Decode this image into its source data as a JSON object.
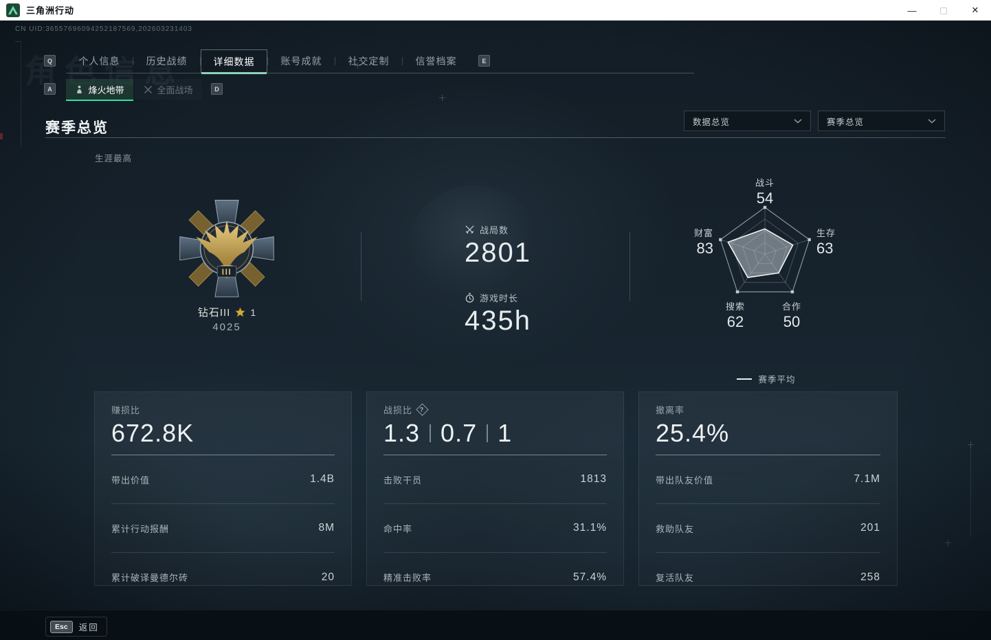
{
  "window": {
    "title": "三角洲行动",
    "minimize": "—",
    "maximize": "▢",
    "close": "✕"
  },
  "hud": {
    "uid": "CN UID:36557696094252187569,202603231403",
    "watermark": "角色信息"
  },
  "tabs": {
    "prev_key": "Q",
    "next_key": "E",
    "items": [
      {
        "label": "个人信息"
      },
      {
        "label": "历史战绩"
      },
      {
        "label": "详细数据"
      },
      {
        "label": "账号成就"
      },
      {
        "label": "社交定制"
      },
      {
        "label": "信誉档案"
      }
    ]
  },
  "subtabs": {
    "prev_key": "A",
    "next_key": "D",
    "items": [
      {
        "label": "烽火地带"
      },
      {
        "label": "全面战场"
      }
    ]
  },
  "section": {
    "title": "赛季总览",
    "filter_data": "数据总览",
    "filter_season": "赛季总览"
  },
  "career": {
    "label": "生涯最高",
    "rank_name": "钻石III",
    "star_count": "1",
    "score": "4025",
    "medal_tier": "III"
  },
  "summary": {
    "battles_label": "战局数",
    "battles_value": "2801",
    "playtime_label": "游戏时长",
    "playtime_value": "435h"
  },
  "chart_data": {
    "type": "radar",
    "axes": [
      {
        "label": "战斗",
        "value": 54
      },
      {
        "label": "生存",
        "value": 63
      },
      {
        "label": "合作",
        "value": 50
      },
      {
        "label": "搜索",
        "value": 62
      },
      {
        "label": "财富",
        "value": 83
      }
    ],
    "series": [
      {
        "name": "赛季平均",
        "values": [
          54,
          63,
          50,
          62,
          83
        ]
      }
    ],
    "max": 100,
    "grid_levels": 4,
    "legend": "赛季平均",
    "legend_position": "bottom"
  },
  "cards": [
    {
      "title": "赚损比",
      "big": "672.8K",
      "rows": [
        {
          "label": "带出价值",
          "value": "1.4B"
        },
        {
          "label": "累计行动报酬",
          "value": "8M"
        },
        {
          "label": "累计破译曼德尔砖",
          "value": "20"
        }
      ]
    },
    {
      "title": "战损比",
      "help": "?",
      "big_parts": [
        "1.3",
        "0.7",
        "1"
      ],
      "rows": [
        {
          "label": "击败干员",
          "value": "1813"
        },
        {
          "label": "命中率",
          "value": "31.1%"
        },
        {
          "label": "精准击败率",
          "value": "57.4%"
        }
      ]
    },
    {
      "title": "撤离率",
      "big": "25.4%",
      "rows": [
        {
          "label": "带出队友价值",
          "value": "7.1M"
        },
        {
          "label": "救助队友",
          "value": "201"
        },
        {
          "label": "复活队友",
          "value": "258"
        }
      ]
    }
  ],
  "footer": {
    "esc_key": "Esc",
    "back_label": "返回"
  },
  "colors": {
    "accent_green": "#2fe3a0",
    "tab_underline": "#86d6b8",
    "bg_dark": "#111b24"
  }
}
